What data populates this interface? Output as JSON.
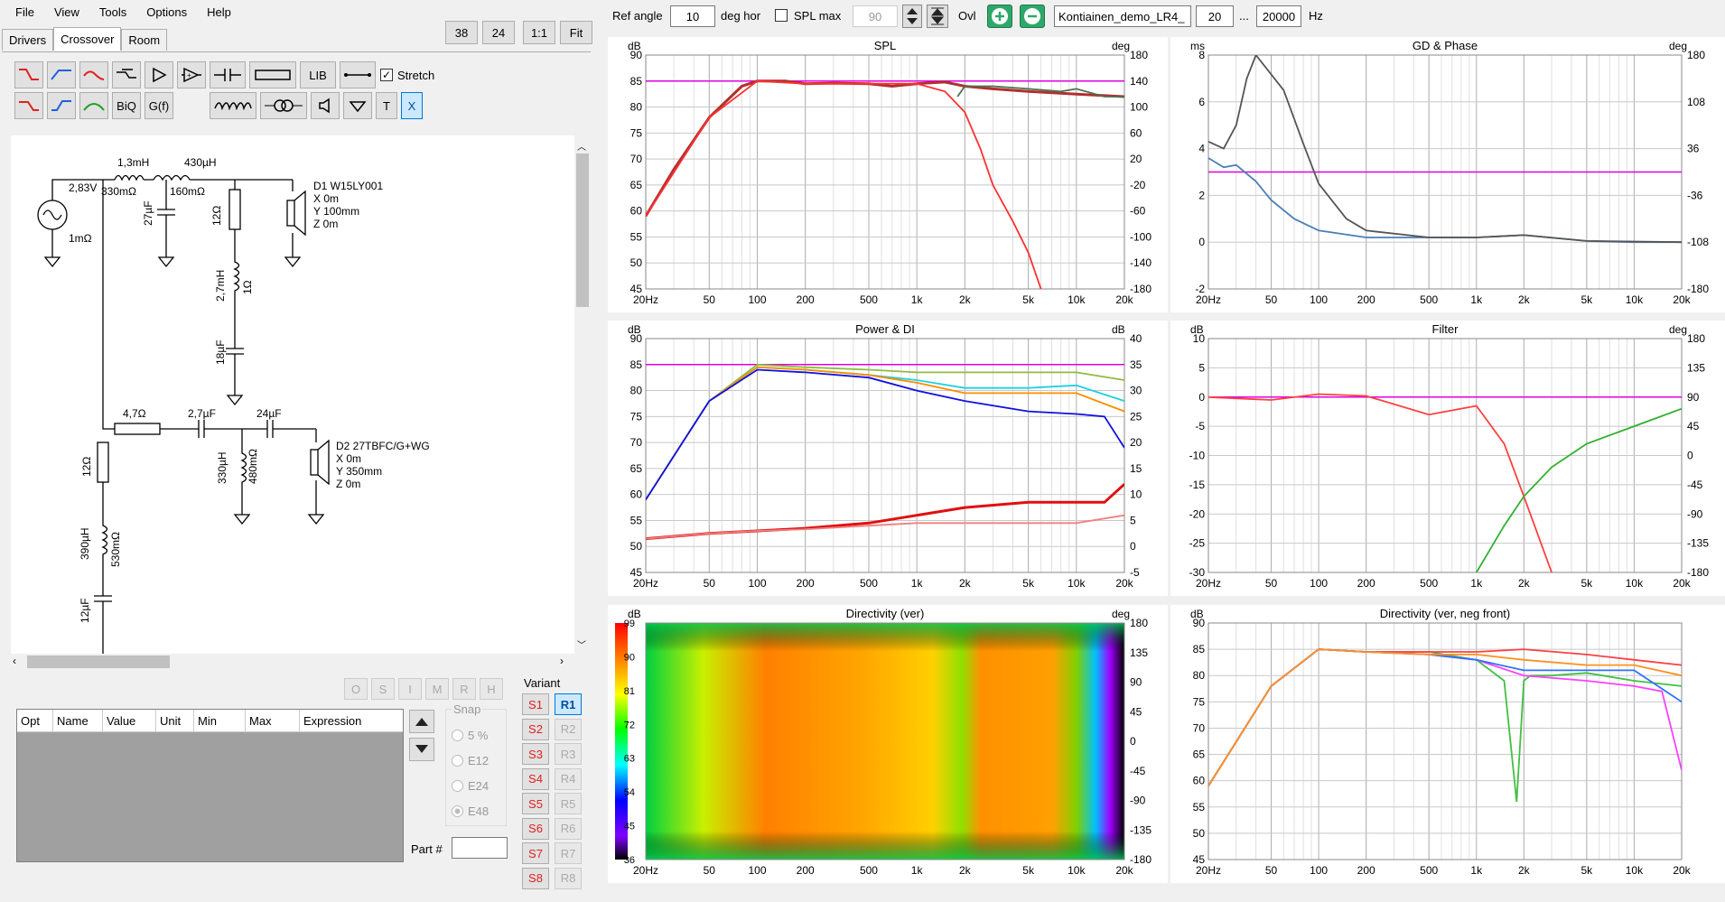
{
  "menu": [
    "File",
    "View",
    "Tools",
    "Options",
    "Help"
  ],
  "tabs": [
    "Drivers",
    "Crossover",
    "Room"
  ],
  "active_tab": "Crossover",
  "zoom_buttons": [
    "38",
    "24",
    "1:1",
    "Fit"
  ],
  "toolbar": {
    "lib": "LIB",
    "biq": "BiQ",
    "gf": "G(f)",
    "t": "T",
    "x": "X",
    "stretch": "Stretch",
    "stretch_checked": true
  },
  "schematic": {
    "source_v": "2,83V",
    "source_r": "1mΩ",
    "l1": "1,3mH",
    "l1r": "330mΩ",
    "l2": "430µH",
    "l2r": "160mΩ",
    "c1": "27µF",
    "r1": "12Ω",
    "l3": "2,7mH",
    "l3r": "1Ω",
    "c2": "18µF",
    "d1_name": "D1 W15LY001",
    "d1_x": "X 0m",
    "d1_y": "Y 100mm",
    "d1_z": "Z 0m",
    "r2": "4,7Ω",
    "c3": "2,7µF",
    "c4": "24µF",
    "l4": "330µH",
    "l4r": "480mΩ",
    "d2_name": "D2 27TBFC/G+WG",
    "d2_x": "X 0m",
    "d2_y": "Y 350mm",
    "d2_z": "Z 0m",
    "r3": "12Ω",
    "l5": "390µH",
    "l5r": "530mΩ",
    "c5": "12µF"
  },
  "opt_buttons": [
    "O",
    "S",
    "I",
    "M",
    "R",
    "H"
  ],
  "table_headers": [
    "Opt",
    "Name",
    "Value",
    "Unit",
    "Min",
    "Max",
    "Expression"
  ],
  "snap": {
    "title": "Snap",
    "options": [
      "5 %",
      "E12",
      "E24",
      "E48"
    ],
    "selected": "E48"
  },
  "part_label": "Part #",
  "variant": {
    "title": "Variant",
    "s": [
      "S1",
      "S2",
      "S3",
      "S4",
      "S5",
      "S6",
      "S7",
      "S8"
    ],
    "r": [
      "R1",
      "R2",
      "R3",
      "R4",
      "R5",
      "R6",
      "R7",
      "R8"
    ],
    "active_r": "R1"
  },
  "controls": {
    "ref_angle_label": "Ref angle",
    "ref_angle": "10",
    "deg_hor": "deg hor",
    "spl_max_label": "SPL max",
    "spl_max": "90",
    "ovl": "Ovl",
    "file": "Kontiainen_demo_LR4_",
    "f_low": "20",
    "dots": "...",
    "f_high": "20000",
    "hz": "Hz"
  },
  "colors": {
    "accent": "#0078d7",
    "magenta": "#e000e0"
  },
  "freq_ticks": [
    "20Hz",
    "50",
    "100",
    "200",
    "500",
    "1k",
    "2k",
    "5k",
    "10k",
    "20k"
  ],
  "chart_data": [
    {
      "type": "line",
      "title": "SPL",
      "ylabel": "dB",
      "y2label": "deg",
      "ylim": [
        45,
        90
      ],
      "y2lim": [
        -180,
        180
      ],
      "yticks": [
        "90",
        "85",
        "80",
        "75",
        "70",
        "65",
        "60",
        "55",
        "50",
        "45"
      ],
      "y2ticks": [
        "180",
        "140",
        "100",
        "60",
        "20",
        "-20",
        "-60",
        "-100",
        "-140",
        "-180"
      ],
      "series": [
        {
          "color": "#b03030",
          "x": [
            20,
            30,
            50,
            80,
            100,
            150,
            200,
            300,
            500,
            700,
            1000,
            1500,
            2000,
            3000,
            5000,
            10000,
            20000
          ],
          "values": [
            59,
            68,
            78,
            84,
            85,
            85,
            84.5,
            84.6,
            84.5,
            84,
            84.5,
            84.8,
            84,
            83.5,
            83,
            82.5,
            82
          ]
        },
        {
          "color": "#ff3030",
          "x": [
            20,
            50,
            100,
            200,
            500,
            1000,
            1500,
            2000,
            2500,
            3000,
            4000,
            5000,
            6000
          ],
          "values": [
            59,
            78,
            85,
            84.5,
            84.5,
            84.5,
            83,
            79,
            72,
            65,
            58,
            52,
            45
          ]
        },
        {
          "color": "#507050",
          "x": [
            1800,
            2000,
            3000,
            5000,
            8000,
            10000,
            15000,
            20000
          ],
          "values": [
            82,
            84,
            84,
            83.5,
            83,
            83.5,
            82,
            82
          ]
        }
      ]
    },
    {
      "type": "line",
      "title": "GD & Phase",
      "ylabel": "ms",
      "y2label": "deg",
      "ylim": [
        -2,
        8
      ],
      "y2lim": [
        -180,
        180
      ],
      "yticks": [
        "8",
        "6",
        "4",
        "2",
        "0",
        "-2"
      ],
      "y2ticks": [
        "180",
        "108",
        "36",
        "-36",
        "-108",
        "-180"
      ],
      "series": [
        {
          "color": "#4a7fb8",
          "x": [
            20,
            25,
            30,
            40,
            50,
            70,
            100,
            200,
            500,
            1000,
            2000,
            5000,
            10000,
            20000
          ],
          "values": [
            3.6,
            3.2,
            3.3,
            2.6,
            1.8,
            1.0,
            0.5,
            0.2,
            0.2,
            0.2,
            0.3,
            0.05,
            0,
            0
          ]
        },
        {
          "color": "#555555",
          "x": [
            20,
            25,
            30,
            35,
            40,
            60,
            80,
            100,
            150,
            200,
            500,
            1000,
            2000,
            5000,
            20000
          ],
          "values": [
            4.3,
            4.0,
            5,
            7,
            8,
            6.5,
            4.2,
            2.5,
            1.0,
            0.5,
            0.2,
            0.2,
            0.3,
            0.05,
            0
          ]
        }
      ]
    },
    {
      "type": "line",
      "title": "Power & DI",
      "ylabel": "dB",
      "y2label": "dB",
      "ylim": [
        45,
        90
      ],
      "y2lim": [
        -5,
        40
      ],
      "yticks": [
        "90",
        "85",
        "80",
        "75",
        "70",
        "65",
        "60",
        "55",
        "50",
        "45"
      ],
      "y2ticks": [
        "40",
        "35",
        "30",
        "25",
        "20",
        "15",
        "10",
        "5",
        "0",
        "-5"
      ],
      "series": [
        {
          "color": "#8fbc3f",
          "x": [
            20,
            50,
            100,
            200,
            500,
            1000,
            2000,
            5000,
            10000,
            20000
          ],
          "values": [
            59,
            78,
            85,
            84.5,
            84,
            83.5,
            83.5,
            83.5,
            83.5,
            82
          ]
        },
        {
          "color": "#20d0e0",
          "x": [
            20,
            50,
            100,
            200,
            500,
            1000,
            2000,
            5000,
            10000,
            20000
          ],
          "values": [
            59,
            78,
            84.5,
            84,
            83,
            82,
            80.5,
            80.5,
            81,
            78
          ]
        },
        {
          "color": "#ff8c00",
          "x": [
            20,
            50,
            100,
            200,
            500,
            1000,
            2000,
            5000,
            10000,
            20000
          ],
          "values": [
            59,
            78,
            84.5,
            84,
            83,
            81.5,
            79.5,
            79.5,
            79.5,
            76
          ]
        },
        {
          "color": "#1010e0",
          "x": [
            20,
            50,
            100,
            200,
            500,
            1000,
            2000,
            5000,
            10000,
            15000,
            20000
          ],
          "values": [
            59,
            78,
            84,
            83.5,
            82.5,
            80,
            78,
            76,
            75.5,
            75,
            69
          ]
        },
        {
          "color": "#e01010",
          "x": [
            20,
            50,
            100,
            200,
            500,
            1000,
            2000,
            5000,
            10000,
            15000,
            20000
          ],
          "values": [
            1.5,
            2.5,
            3,
            3.5,
            4.5,
            6,
            7.5,
            8.5,
            8.5,
            8.5,
            12
          ]
        },
        {
          "color": "#f08080",
          "x": [
            20,
            50,
            100,
            200,
            500,
            1000,
            2000,
            5000,
            10000,
            20000
          ],
          "values": [
            1.5,
            2.5,
            3,
            3.3,
            4,
            4.5,
            4.5,
            4.5,
            4.5,
            6
          ]
        }
      ]
    },
    {
      "type": "line",
      "title": "Filter",
      "ylabel": "dB",
      "y2label": "deg",
      "ylim": [
        -30,
        10
      ],
      "y2lim": [
        -180,
        180
      ],
      "yticks": [
        "10",
        "5",
        "0",
        "-5",
        "-10",
        "-15",
        "-20",
        "-25",
        "-30"
      ],
      "y2ticks": [
        "180",
        "135",
        "90",
        "45",
        "0",
        "-45",
        "-90",
        "-135",
        "-180"
      ],
      "series": [
        {
          "color": "#ff4040",
          "x": [
            20,
            50,
            100,
            200,
            500,
            1000,
            1500,
            2000,
            3000
          ],
          "values": [
            0,
            -0.5,
            0.5,
            0.2,
            -3,
            -1.5,
            -8,
            -17,
            -30
          ]
        },
        {
          "color": "#30b030",
          "x": [
            1000,
            1500,
            2000,
            3000,
            5000,
            10000,
            20000
          ],
          "values": [
            -30,
            -22,
            -17,
            -12,
            -8,
            -5,
            -2
          ]
        }
      ]
    },
    {
      "type": "heatmap",
      "title": "Directivity (ver)",
      "ylabel": "dB",
      "y2label": "deg",
      "ylim": [
        36,
        99
      ],
      "y2lim": [
        -180,
        180
      ],
      "yticks": [
        "99",
        "90",
        "81",
        "72",
        "63",
        "54",
        "45",
        "36"
      ],
      "y2ticks": [
        "180",
        "135",
        "90",
        "45",
        "0",
        "-45",
        "-90",
        "-135",
        "-180"
      ]
    },
    {
      "type": "line",
      "title": "Directivity (ver, neg front)",
      "ylabel": "dB",
      "ylim": [
        45,
        90
      ],
      "yticks": [
        "90",
        "85",
        "80",
        "75",
        "70",
        "65",
        "60",
        "55",
        "50",
        "45"
      ],
      "series": [
        {
          "color": "#40c040",
          "x": [
            20,
            50,
            100,
            200,
            500,
            1000,
            1500,
            1800,
            2000,
            2200,
            3000,
            5000,
            10000,
            20000
          ],
          "values": [
            59,
            78,
            85,
            84.5,
            84.5,
            83,
            79,
            56,
            79,
            80,
            80,
            80.5,
            79,
            78
          ]
        },
        {
          "color": "#ff40ff",
          "x": [
            20,
            50,
            100,
            200,
            500,
            1000,
            2000,
            5000,
            10000,
            15000,
            20000
          ],
          "values": [
            59,
            78,
            85,
            84.5,
            84,
            83,
            80,
            79,
            78,
            77,
            62
          ]
        },
        {
          "color": "#ff4040",
          "x": [
            20,
            50,
            100,
            200,
            500,
            1000,
            2000,
            5000,
            10000,
            20000
          ],
          "values": [
            59,
            78,
            85,
            84.5,
            84.5,
            84.5,
            85,
            84,
            83,
            82
          ]
        },
        {
          "color": "#3070ff",
          "x": [
            20,
            50,
            100,
            200,
            500,
            1000,
            2000,
            5000,
            10000,
            20000
          ],
          "values": [
            59,
            78,
            85,
            84.5,
            84,
            83,
            81,
            81,
            81,
            75
          ]
        },
        {
          "color": "#ff9020",
          "x": [
            20,
            50,
            100,
            200,
            500,
            1000,
            2000,
            5000,
            10000,
            20000
          ],
          "values": [
            59,
            78,
            85,
            84.5,
            84,
            84,
            83,
            82,
            82,
            80
          ]
        }
      ]
    }
  ]
}
